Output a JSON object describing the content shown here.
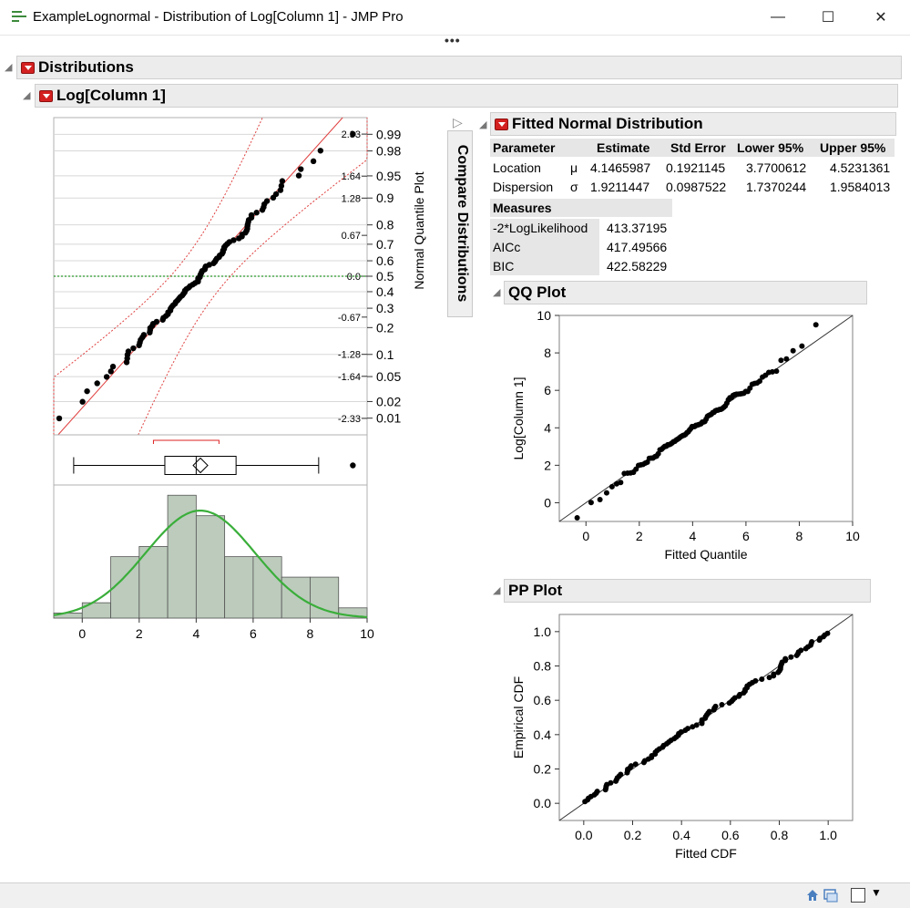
{
  "window": {
    "title": "ExampleLognormal - Distribution of Log[Column 1] - JMP Pro",
    "minimize_glyph": "—",
    "maximize_glyph": "☐",
    "close_glyph": "✕"
  },
  "outline": {
    "distributions": "Distributions",
    "variable": "Log[Column 1]",
    "compare": "Compare Distributions",
    "fitted": "Fitted Normal Distribution",
    "qq": "QQ Plot",
    "pp": "PP Plot"
  },
  "parameter_table": {
    "headers": [
      "Parameter",
      "",
      "Estimate",
      "Std Error",
      "Lower 95%",
      "Upper 95%"
    ],
    "rows": [
      [
        "Location",
        "μ",
        "4.1465987",
        "0.1921145",
        "3.7700612",
        "4.5231361"
      ],
      [
        "Dispersion",
        "σ",
        "1.9211447",
        "0.0987522",
        "1.7370244",
        "1.9584013"
      ]
    ]
  },
  "measures_table": {
    "header": "Measures",
    "rows": [
      [
        "-2*LogLikelihood",
        "413.37195"
      ],
      [
        "AICc",
        "417.49566"
      ],
      [
        "BIC",
        "422.58229"
      ]
    ]
  },
  "chart_data": [
    {
      "type": "scatter",
      "name": "normal-quantile-plot",
      "ylabel": "Normal Quantile Plot",
      "z_ticks": [
        "2.33",
        "1.64",
        "1.28",
        "0.67",
        "0.0",
        "-0.67",
        "-1.28",
        "-1.64",
        "-2.33"
      ],
      "prob_ticks": [
        "0.99",
        "0.98",
        "0.95",
        "0.9",
        "0.8",
        "0.7",
        "0.6",
        "0.5",
        "0.4",
        "0.3",
        "0.2",
        "0.1",
        "0.05",
        "0.02",
        "0.01"
      ],
      "xlim": [
        -1,
        10
      ],
      "ylim": [
        -2.6,
        2.6
      ],
      "reference_line_color": "#e04040",
      "confidence_band_color": "#e04040",
      "median_line_color": "#2a9a2a"
    },
    {
      "type": "box",
      "name": "outlier-box-plot",
      "q1": 2.9,
      "median": 4.0,
      "q3": 5.4,
      "mean": 4.15,
      "whisker_low": -0.3,
      "whisker_high": 8.3,
      "outliers": [
        9.5
      ],
      "shortest_half": [
        2.5,
        4.8
      ]
    },
    {
      "type": "bar",
      "name": "histogram",
      "bins": [
        -1,
        0,
        1,
        2,
        3,
        4,
        5,
        6,
        7,
        8,
        9,
        10
      ],
      "counts": [
        0.5,
        1.5,
        6,
        7,
        12,
        10,
        6,
        6,
        4,
        4,
        1,
        0.5
      ],
      "x_ticks": [
        "0",
        "2",
        "4",
        "6",
        "8",
        "10"
      ],
      "xlim": [
        -1,
        10
      ],
      "bar_color": "#bccbbc",
      "curve_color": "#3aae3a"
    },
    {
      "type": "scatter",
      "name": "qq-plot",
      "xlabel": "Fitted Quantile",
      "ylabel": "Log[Column 1]",
      "xlim": [
        -1,
        10
      ],
      "ylim": [
        -1,
        10
      ],
      "x_ticks": [
        "0",
        "2",
        "4",
        "6",
        "8",
        "10"
      ],
      "y_ticks": [
        "0",
        "2",
        "4",
        "6",
        "8",
        "10"
      ]
    },
    {
      "type": "scatter",
      "name": "pp-plot",
      "xlabel": "Fitted CDF",
      "ylabel": "Empirical CDF",
      "xlim": [
        -0.1,
        1.1
      ],
      "ylim": [
        -0.1,
        1.1
      ],
      "x_ticks": [
        "0.0",
        "0.2",
        "0.4",
        "0.6",
        "0.8",
        "1.0"
      ],
      "y_ticks": [
        "0.0",
        "0.2",
        "0.4",
        "0.6",
        "0.8",
        "1.0"
      ]
    }
  ]
}
